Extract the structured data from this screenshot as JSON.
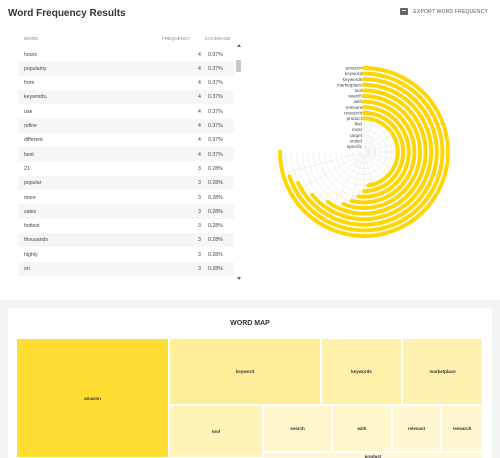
{
  "header": {
    "title": "Word Frequency Results",
    "export_label": "EXPORT WORD FREQUENCY",
    "export_icon": "export-icon"
  },
  "table": {
    "columns": [
      "WORD",
      "FREQUENCY",
      "COVERAGE"
    ],
    "rows": [
      {
        "word": "hours",
        "frequency": "4",
        "coverage": "0.37%"
      },
      {
        "word": "popularity",
        "frequency": "4",
        "coverage": "0.37%"
      },
      {
        "word": "from",
        "frequency": "4",
        "coverage": "0.37%"
      },
      {
        "word": "keywords,",
        "frequency": "4",
        "coverage": "0.37%"
      },
      {
        "word": "use",
        "frequency": "4",
        "coverage": "0.37%"
      },
      {
        "word": "refine",
        "frequency": "4",
        "coverage": "0.37%"
      },
      {
        "word": "different",
        "frequency": "4",
        "coverage": "0.37%"
      },
      {
        "word": "best",
        "frequency": "4",
        "coverage": "0.37%"
      },
      {
        "word": "21",
        "frequency": "3",
        "coverage": "0.28%"
      },
      {
        "word": "popular",
        "frequency": "3",
        "coverage": "0.28%"
      },
      {
        "word": "more",
        "frequency": "3",
        "coverage": "0.28%"
      },
      {
        "word": "sales",
        "frequency": "3",
        "coverage": "0.28%"
      },
      {
        "word": "hottest",
        "frequency": "3",
        "coverage": "0.28%"
      },
      {
        "word": "thousands",
        "frequency": "3",
        "coverage": "0.28%"
      },
      {
        "word": "highly",
        "frequency": "3",
        "coverage": "0.28%"
      },
      {
        "word": "on",
        "frequency": "3",
        "coverage": "0.28%"
      }
    ]
  },
  "radial_chart": {
    "labels": [
      "amazon",
      "keyword",
      "keywords",
      "marketplace",
      "tool",
      "search",
      "with",
      "relevant",
      "research",
      "product",
      "find",
      "most",
      "target",
      "united",
      "specific"
    ],
    "fractions": [
      0.75,
      0.7,
      0.68,
      0.64,
      0.6,
      0.56,
      0.54,
      0.52,
      0.5,
      0.48,
      0,
      0,
      0,
      0,
      0
    ],
    "bar_color": "#ffd600",
    "grid_color": "#e4e4e4"
  },
  "word_map": {
    "title": "WORD MAP",
    "cells": [
      {
        "label": "amazon",
        "color": "#ffdd33"
      },
      {
        "label": "keyword",
        "color": "#ffee99"
      },
      {
        "label": "keywords",
        "color": "#fff1aa"
      },
      {
        "label": "marketplace",
        "color": "#fff2b0"
      },
      {
        "label": "tool",
        "color": "#fff3b8"
      },
      {
        "label": "search",
        "color": "#fff6cc"
      },
      {
        "label": "with",
        "color": "#fff6cc"
      },
      {
        "label": "relevant",
        "color": "#fff7d1"
      },
      {
        "label": "research",
        "color": "#fff7d1"
      },
      {
        "label": "product",
        "color": "#fff8d6"
      }
    ]
  }
}
